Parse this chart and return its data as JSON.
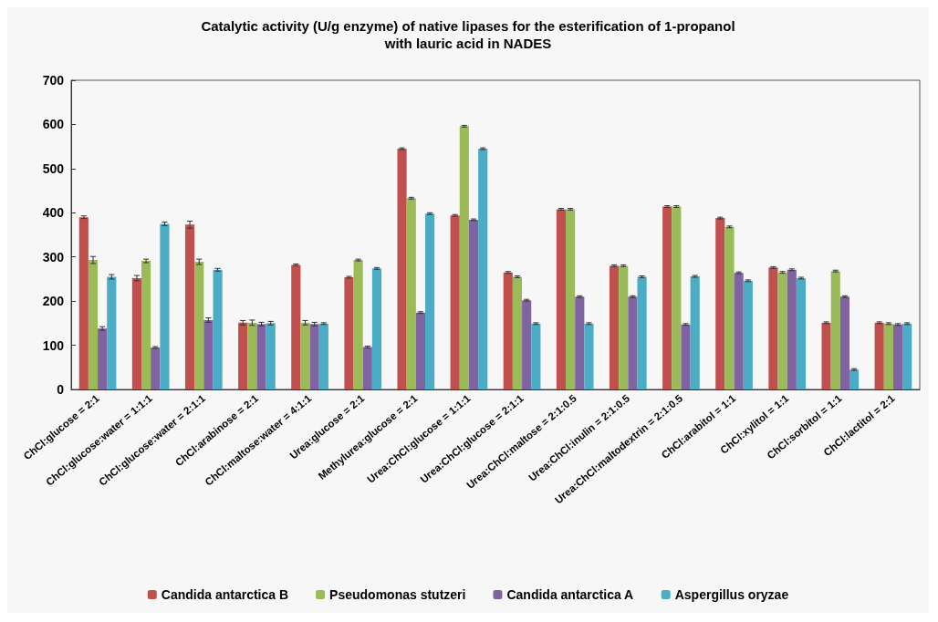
{
  "chart_data": {
    "type": "bar",
    "title": "Catalytic activity (U/g enzyme) of native lipases for the esterification of 1-propanol\nwith lauric acid in NADES",
    "categories": [
      "ChCl:glucose = 2:1",
      "ChCl:glucose:water = 1:1:1",
      "ChCl:glucose:water = 2:1:1",
      "ChCl:arabinose = 2:1",
      "ChCl:maltose:water = 4:1:1",
      "Urea:glucose = 2:1",
      "Methylurea:glucose = 2:1",
      "Urea:ChCl:glucose = 1:1:1",
      "Urea:ChCl:glucose = 2:1:1",
      "Urea:ChCl:maltose = 2:1:0.5",
      "Urea:ChCl:inulin = 2:1:0.5",
      "Urea:ChCl:maltodextrin = 2:1:0.5",
      "ChCl:arabitol = 1:1",
      "ChCl:xylitol = 1:1",
      "ChCl:sorbitol = 1:1",
      "ChCl:lactitol = 2:1"
    ],
    "series": [
      {
        "name": "Candida antarctica B",
        "color": "#c0504d",
        "values": [
          390,
          252,
          373,
          151,
          282,
          254,
          545,
          394,
          265,
          408,
          280,
          414,
          388,
          276,
          151,
          151
        ],
        "errors": [
          3,
          6,
          8,
          5,
          2,
          2,
          2,
          2,
          2,
          2,
          2,
          2,
          2,
          2,
          2,
          2
        ]
      },
      {
        "name": "Pseudomonas stutzeri",
        "color": "#9bbb59",
        "values": [
          293,
          291,
          289,
          151,
          151,
          293,
          433,
          596,
          255,
          408,
          280,
          414,
          368,
          265,
          268,
          149
        ],
        "errors": [
          8,
          4,
          6,
          6,
          5,
          2,
          2,
          2,
          2,
          2,
          2,
          2,
          2,
          2,
          2,
          2
        ]
      },
      {
        "name": "Candida antarctica A",
        "color": "#8064a2",
        "values": [
          138,
          95,
          157,
          148,
          148,
          96,
          174,
          384,
          202,
          210,
          210,
          147,
          264,
          271,
          210,
          147
        ],
        "errors": [
          4,
          2,
          5,
          4,
          4,
          2,
          2,
          2,
          2,
          2,
          2,
          2,
          2,
          2,
          2,
          2
        ]
      },
      {
        "name": "Aspergillus oryzae",
        "color": "#4bacc6",
        "values": [
          255,
          375,
          271,
          150,
          149,
          274,
          398,
          545,
          149,
          149,
          255,
          256,
          246,
          252,
          45,
          149
        ],
        "errors": [
          5,
          4,
          3,
          4,
          2,
          2,
          2,
          2,
          2,
          2,
          2,
          2,
          2,
          2,
          2,
          2
        ]
      }
    ],
    "ylim": [
      0,
      700
    ],
    "yticks": [
      0,
      100,
      200,
      300,
      400,
      500,
      600,
      700
    ],
    "grid": false,
    "legend": "bottom"
  }
}
